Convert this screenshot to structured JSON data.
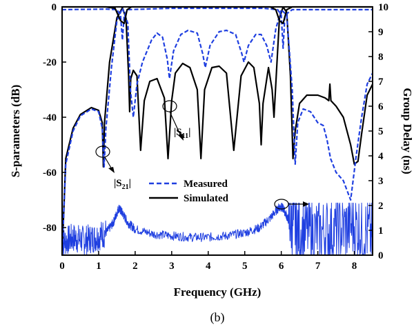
{
  "chart_data": {
    "type": "line",
    "xlabel": "Frequency (GHz)",
    "ylabel": "S-parameters (dB)",
    "y2label": "Group Delay (ns)",
    "caption": "(b)",
    "xlim": [
      0,
      8.5
    ],
    "ylim": [
      -90,
      0
    ],
    "y2lim": [
      0,
      10
    ],
    "xticks": [
      "0",
      "1",
      "2",
      "3",
      "4",
      "5",
      "6",
      "7",
      "8"
    ],
    "yticks": [
      "0",
      "-20",
      "-40",
      "-60",
      "-80"
    ],
    "y2ticks": [
      "0",
      "1",
      "2",
      "3",
      "4",
      "5",
      "6",
      "7",
      "8",
      "9",
      "10"
    ],
    "legend": [
      {
        "label": "Measured",
        "color": "#1f3fe0",
        "dash": "dashed"
      },
      {
        "label": "Simulated",
        "color": "#000000",
        "dash": "solid"
      }
    ],
    "annotations": [
      {
        "text": "|S",
        "sub": "11",
        "suffix": "|",
        "x": 2.9,
        "y": -34
      },
      {
        "text": "|S",
        "sub": "21",
        "suffix": "|",
        "x": 1.15,
        "y": -52
      }
    ],
    "series": [
      {
        "color": "#000000",
        "dash": "solid",
        "axis": "left",
        "points": [
          [
            0,
            -90
          ],
          [
            0.1,
            -55
          ],
          [
            0.3,
            -44
          ],
          [
            0.5,
            -39
          ],
          [
            0.8,
            -36.5
          ],
          [
            1.0,
            -37.5
          ],
          [
            1.1,
            -42
          ],
          [
            1.13,
            -58
          ],
          [
            1.16,
            -42
          ],
          [
            1.3,
            -20
          ],
          [
            1.5,
            -4
          ],
          [
            1.65,
            -0.3
          ],
          [
            1.75,
            -4
          ],
          [
            1.82,
            -25
          ],
          [
            1.85,
            -38
          ],
          [
            1.88,
            -26
          ],
          [
            1.95,
            -23
          ],
          [
            2.05,
            -25
          ],
          [
            2.15,
            -52
          ],
          [
            2.25,
            -34
          ],
          [
            2.4,
            -27
          ],
          [
            2.6,
            -26
          ],
          [
            2.8,
            -33
          ],
          [
            2.9,
            -55
          ],
          [
            3.0,
            -34
          ],
          [
            3.1,
            -24
          ],
          [
            3.3,
            -20.5
          ],
          [
            3.5,
            -22
          ],
          [
            3.7,
            -30
          ],
          [
            3.8,
            -55
          ],
          [
            3.9,
            -30
          ],
          [
            4.1,
            -22
          ],
          [
            4.3,
            -21.5
          ],
          [
            4.5,
            -24
          ],
          [
            4.7,
            -52
          ],
          [
            4.9,
            -25
          ],
          [
            5.1,
            -20
          ],
          [
            5.25,
            -22
          ],
          [
            5.4,
            -35
          ],
          [
            5.45,
            -50
          ],
          [
            5.5,
            -35
          ],
          [
            5.65,
            -22
          ],
          [
            5.75,
            -30
          ],
          [
            5.8,
            -40
          ],
          [
            5.85,
            -28
          ],
          [
            5.95,
            -4
          ],
          [
            6.05,
            0
          ],
          [
            6.15,
            -2
          ],
          [
            6.25,
            -25
          ],
          [
            6.32,
            -55
          ],
          [
            6.38,
            -45
          ],
          [
            6.5,
            -35
          ],
          [
            6.7,
            -32
          ],
          [
            7.0,
            -32
          ],
          [
            7.2,
            -33
          ],
          [
            7.3,
            -34
          ],
          [
            7.33,
            -28
          ],
          [
            7.36,
            -34
          ],
          [
            7.5,
            -36
          ],
          [
            7.7,
            -40
          ],
          [
            7.9,
            -50
          ],
          [
            8.0,
            -57
          ],
          [
            8.1,
            -56
          ],
          [
            8.2,
            -46
          ],
          [
            8.35,
            -32
          ],
          [
            8.5,
            -28
          ]
        ]
      },
      {
        "color": "#1f3fe0",
        "dash": "dashed",
        "axis": "left",
        "points": [
          [
            0,
            -90
          ],
          [
            0.1,
            -57
          ],
          [
            0.3,
            -45
          ],
          [
            0.5,
            -39.5
          ],
          [
            0.8,
            -37
          ],
          [
            1.0,
            -38
          ],
          [
            1.1,
            -44
          ],
          [
            1.15,
            -58
          ],
          [
            1.2,
            -44
          ],
          [
            1.35,
            -22
          ],
          [
            1.5,
            -5
          ],
          [
            1.65,
            -0.5
          ],
          [
            1.8,
            -6
          ],
          [
            1.87,
            -30
          ],
          [
            1.95,
            -40
          ],
          [
            2.05,
            -28
          ],
          [
            2.2,
            -20
          ],
          [
            2.45,
            -12
          ],
          [
            2.6,
            -9.5
          ],
          [
            2.75,
            -11
          ],
          [
            2.88,
            -19
          ],
          [
            2.94,
            -26
          ],
          [
            3.05,
            -16
          ],
          [
            3.25,
            -10
          ],
          [
            3.45,
            -8.5
          ],
          [
            3.7,
            -9.5
          ],
          [
            3.85,
            -17
          ],
          [
            3.92,
            -22
          ],
          [
            4.05,
            -14
          ],
          [
            4.3,
            -9
          ],
          [
            4.5,
            -8.5
          ],
          [
            4.75,
            -10
          ],
          [
            4.92,
            -17
          ],
          [
            4.98,
            -20
          ],
          [
            5.1,
            -14
          ],
          [
            5.3,
            -10
          ],
          [
            5.45,
            -10
          ],
          [
            5.6,
            -14
          ],
          [
            5.72,
            -20
          ],
          [
            5.85,
            -8
          ],
          [
            6.0,
            -1
          ],
          [
            6.15,
            -3
          ],
          [
            6.3,
            -30
          ],
          [
            6.38,
            -57
          ],
          [
            6.45,
            -42
          ],
          [
            6.6,
            -37
          ],
          [
            6.8,
            -38
          ],
          [
            7.0,
            -42
          ],
          [
            7.15,
            -43
          ],
          [
            7.25,
            -48
          ],
          [
            7.35,
            -55
          ],
          [
            7.5,
            -60
          ],
          [
            7.7,
            -63
          ],
          [
            7.9,
            -70
          ],
          [
            8.05,
            -54
          ],
          [
            8.2,
            -40
          ],
          [
            8.35,
            -28
          ],
          [
            8.5,
            -24
          ]
        ]
      },
      {
        "color": "#1f3fe0",
        "dash": "dashed",
        "axis": "left",
        "points": [
          [
            0,
            -1
          ],
          [
            1.2,
            -0.8
          ],
          [
            1.5,
            -1
          ],
          [
            1.6,
            -3
          ],
          [
            1.65,
            -12
          ],
          [
            1.7,
            -3
          ],
          [
            1.8,
            -1
          ],
          [
            3.0,
            -0.5
          ],
          [
            5.5,
            -0.5
          ],
          [
            5.9,
            -1
          ],
          [
            6.0,
            -3
          ],
          [
            6.05,
            -15
          ],
          [
            6.1,
            -3
          ],
          [
            6.3,
            -1
          ],
          [
            8.5,
            -1
          ]
        ]
      },
      {
        "color": "#000000",
        "dash": "solid",
        "axis": "left",
        "points": [
          [
            0,
            0
          ],
          [
            1.2,
            0
          ],
          [
            1.45,
            -0.5
          ],
          [
            1.6,
            -5
          ],
          [
            1.7,
            -6
          ],
          [
            1.78,
            -1
          ],
          [
            1.9,
            0
          ],
          [
            5.7,
            0
          ],
          [
            5.85,
            -1
          ],
          [
            5.95,
            -5
          ],
          [
            6.05,
            -6
          ],
          [
            6.15,
            -1
          ],
          [
            6.3,
            0
          ],
          [
            8.5,
            0
          ]
        ]
      },
      {
        "color": "#1f3fe0",
        "dash": "solid",
        "axis": "right",
        "noisy": true,
        "points": [
          [
            0,
            0.5
          ],
          [
            0.3,
            0.7
          ],
          [
            0.6,
            0.6
          ],
          [
            0.9,
            0.7
          ],
          [
            1.2,
            0.9
          ],
          [
            1.4,
            1.3
          ],
          [
            1.55,
            1.9
          ],
          [
            1.65,
            1.7
          ],
          [
            1.8,
            1.3
          ],
          [
            2.0,
            1.05
          ],
          [
            2.5,
            0.85
          ],
          [
            3.0,
            0.78
          ],
          [
            3.5,
            0.72
          ],
          [
            4.0,
            0.72
          ],
          [
            4.5,
            0.78
          ],
          [
            5.0,
            0.9
          ],
          [
            5.4,
            1.1
          ],
          [
            5.7,
            1.5
          ],
          [
            5.95,
            1.95
          ],
          [
            6.05,
            1.9
          ],
          [
            6.2,
            1.4
          ],
          [
            6.5,
            1.0
          ],
          [
            7.0,
            0.9
          ],
          [
            7.5,
            1.0
          ],
          [
            8.0,
            1.2
          ],
          [
            8.5,
            0.8
          ]
        ]
      }
    ]
  }
}
